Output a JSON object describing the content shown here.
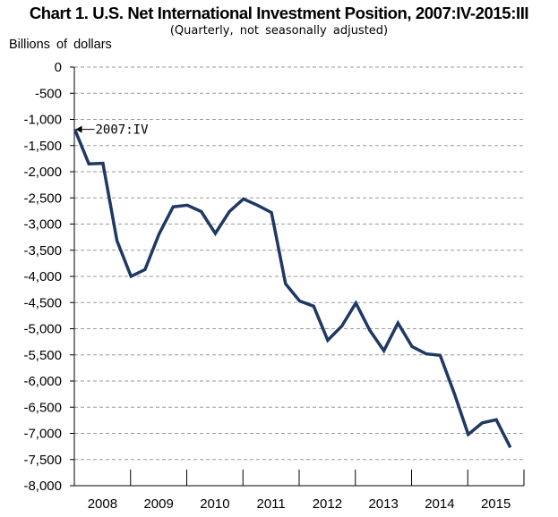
{
  "chart_data": {
    "type": "line",
    "title": "Chart 1. U.S. Net International Investment Position, 2007:IV-2015:III",
    "subtitle": "(Quarterly,  not seasonally  adjusted)",
    "ylabel": "Billions  of dollars",
    "xlabel": "",
    "ylim": [
      -8000,
      0
    ],
    "yticks": [
      0,
      -500,
      -1000,
      -1500,
      -2000,
      -2500,
      -3000,
      -3500,
      -4000,
      -4500,
      -5000,
      -5500,
      -6000,
      -6500,
      -7000,
      -7500,
      -8000
    ],
    "ytick_labels": [
      "0",
      "-500",
      "-1,000",
      "-1,500",
      "-2,000",
      "-2,500",
      "-3,000",
      "-3,500",
      "-4,000",
      "-4,500",
      "-5,000",
      "-5,500",
      "-6,000",
      "-6,500",
      "-7,000",
      "-7,500",
      "-8,000"
    ],
    "year_labels": [
      "2008",
      "2009",
      "2010",
      "2011",
      "2012",
      "2013",
      "2014",
      "2015"
    ],
    "grid": "horizontal dashed",
    "x": [
      "2007:IV",
      "2008:I",
      "2008:II",
      "2008:III",
      "2008:IV",
      "2009:I",
      "2009:II",
      "2009:III",
      "2009:IV",
      "2010:I",
      "2010:II",
      "2010:III",
      "2010:IV",
      "2011:I",
      "2011:II",
      "2011:III",
      "2011:IV",
      "2012:I",
      "2012:II",
      "2012:III",
      "2012:IV",
      "2013:I",
      "2013:II",
      "2013:III",
      "2013:IV",
      "2014:I",
      "2014:II",
      "2014:III",
      "2014:IV",
      "2015:I",
      "2015:II",
      "2015:III"
    ],
    "series": [
      {
        "values": [
          -1190,
          -1850,
          -1840,
          -3320,
          -4000,
          -3870,
          -3190,
          -2670,
          -2640,
          -2760,
          -3180,
          -2760,
          -2520,
          -2640,
          -2780,
          -4140,
          -4470,
          -4570,
          -5220,
          -4950,
          -4510,
          -5030,
          -5420,
          -4890,
          -5340,
          -5480,
          -5510,
          -6230,
          -7020,
          -6800,
          -6740,
          -7270
        ],
        "color": "#1f3864"
      }
    ],
    "annotations": [
      {
        "text": "2007:IV",
        "x": "2007:IV",
        "y": -1190
      }
    ]
  }
}
